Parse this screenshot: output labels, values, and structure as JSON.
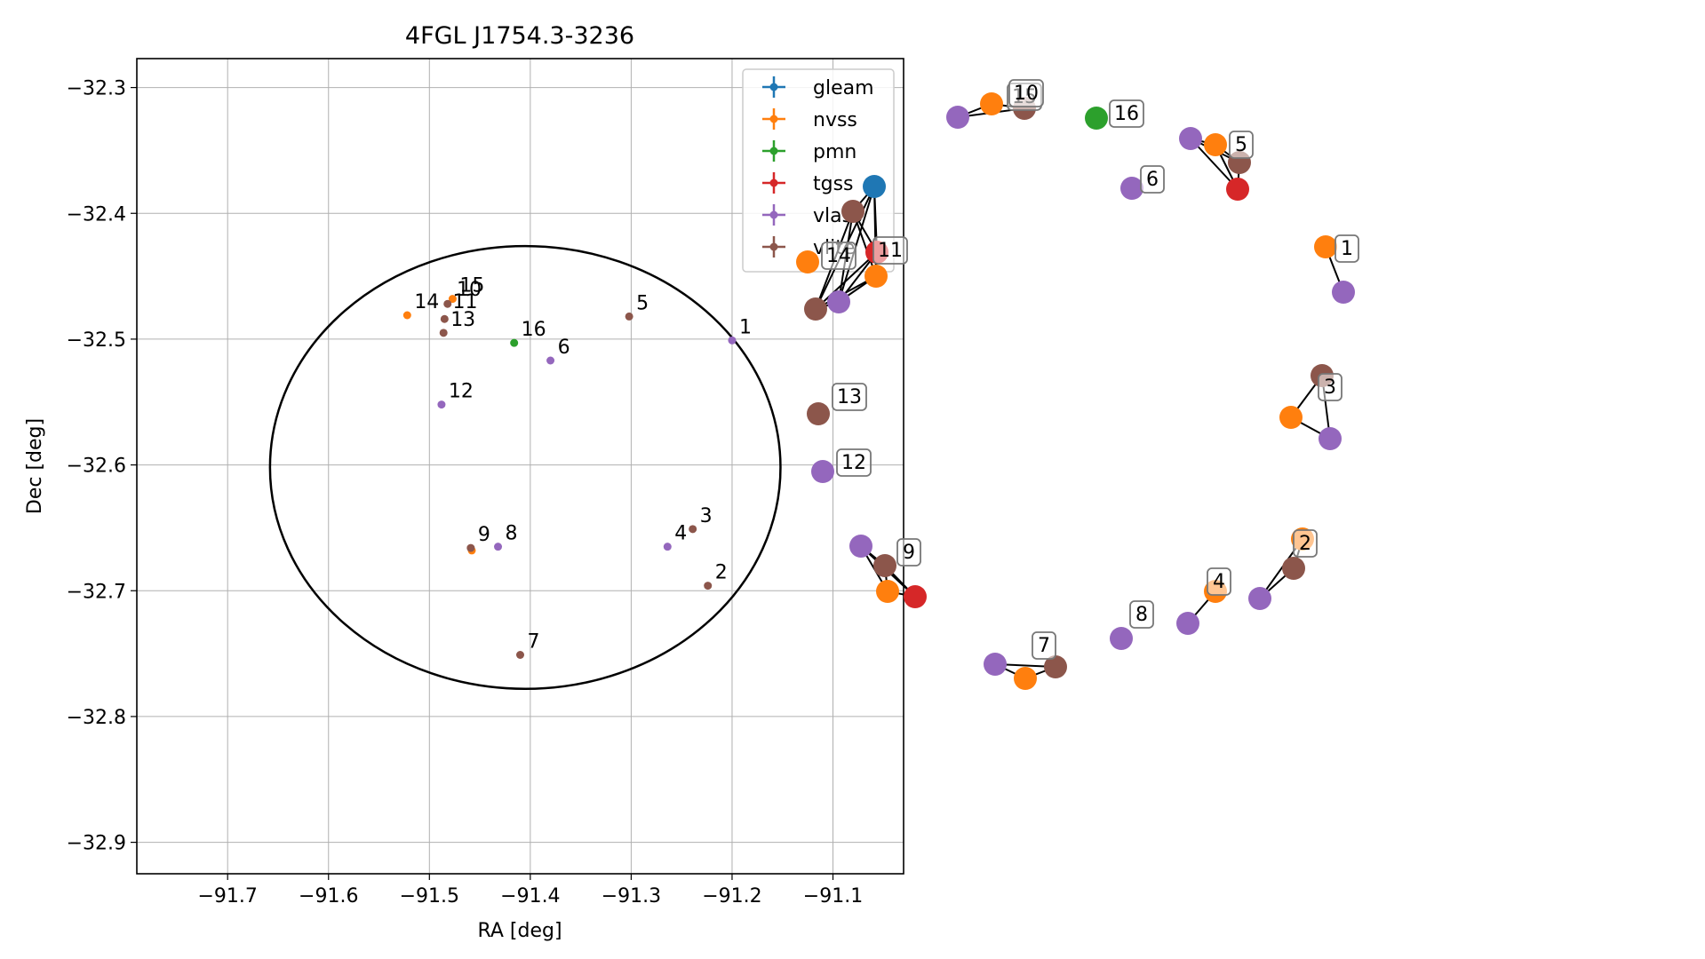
{
  "chart_data": [
    {
      "type": "scatter",
      "title": "4FGL J1754.3-3236",
      "xlabel": "RA [deg]",
      "ylabel": "Dec [deg]",
      "xlim": [
        -91.79,
        -91.03
      ],
      "ylim": [
        -32.925,
        -32.277
      ],
      "xticks": [
        -91.7,
        -91.6,
        -91.5,
        -91.4,
        -91.3,
        -91.2,
        -91.1
      ],
      "xtick_labels": [
        "−91.7",
        "−91.6",
        "−91.5",
        "−91.4",
        "−91.3",
        "−91.2",
        "−91.1"
      ],
      "yticks": [
        -32.3,
        -32.4,
        -32.5,
        -32.6,
        -32.7,
        -32.8,
        -32.9
      ],
      "ytick_labels": [
        "−32.3",
        "−32.4",
        "−32.5",
        "−32.6",
        "−32.7",
        "−32.8",
        "−32.9"
      ],
      "grid": true,
      "legend_position": "top-right",
      "error_ellipse": {
        "center": [
          -91.405,
          -32.602
        ],
        "semi_axis_ra": 0.253,
        "semi_axis_dec": 0.176,
        "color": "#000000"
      },
      "series": [
        {
          "name": "gleam",
          "color": "#1f77b4",
          "points": []
        },
        {
          "name": "nvss",
          "color": "#ff7f0e",
          "points": [
            {
              "x": -91.522,
              "y": -32.481
            },
            {
              "x": -91.477,
              "y": -32.468
            },
            {
              "x": -91.458,
              "y": -32.668
            }
          ]
        },
        {
          "name": "pmn",
          "color": "#2ca02c",
          "points": [
            {
              "x": -91.416,
              "y": -32.503
            }
          ]
        },
        {
          "name": "tgss",
          "color": "#d62728",
          "points": []
        },
        {
          "name": "vlass",
          "color": "#9467bd",
          "points": [
            {
              "x": -91.2,
              "y": -32.501
            },
            {
              "x": -91.38,
              "y": -32.517
            },
            {
              "x": -91.488,
              "y": -32.552
            },
            {
              "x": -91.264,
              "y": -32.665
            },
            {
              "x": -91.432,
              "y": -32.665
            }
          ]
        },
        {
          "name": "vlite",
          "color": "#8c564b",
          "points": [
            {
              "x": -91.302,
              "y": -32.482
            },
            {
              "x": -91.482,
              "y": -32.472
            },
            {
              "x": -91.485,
              "y": -32.484
            },
            {
              "x": -91.486,
              "y": -32.495
            },
            {
              "x": -91.239,
              "y": -32.651
            },
            {
              "x": -91.224,
              "y": -32.696
            },
            {
              "x": -91.459,
              "y": -32.666
            },
            {
              "x": -91.41,
              "y": -32.751
            }
          ]
        }
      ],
      "source_labels": [
        {
          "text": "1",
          "x": -91.2,
          "y": -32.501
        },
        {
          "text": "2",
          "x": -91.224,
          "y": -32.696
        },
        {
          "text": "3",
          "x": -91.239,
          "y": -32.651
        },
        {
          "text": "4",
          "x": -91.264,
          "y": -32.665
        },
        {
          "text": "5",
          "x": -91.302,
          "y": -32.482
        },
        {
          "text": "6",
          "x": -91.38,
          "y": -32.517
        },
        {
          "text": "7",
          "x": -91.41,
          "y": -32.751
        },
        {
          "text": "8",
          "x": -91.432,
          "y": -32.665
        },
        {
          "text": "9",
          "x": -91.459,
          "y": -32.666
        },
        {
          "text": "10",
          "x": -91.48,
          "y": -32.471
        },
        {
          "text": "11",
          "x": -91.484,
          "y": -32.481
        },
        {
          "text": "12",
          "x": -91.488,
          "y": -32.552
        },
        {
          "text": "13",
          "x": -91.486,
          "y": -32.495
        },
        {
          "text": "14",
          "x": -91.522,
          "y": -32.481
        },
        {
          "text": "15",
          "x": -91.477,
          "y": -32.468
        },
        {
          "text": "16",
          "x": -91.416,
          "y": -32.503
        }
      ]
    },
    {
      "type": "scatter",
      "title": "",
      "grid": false,
      "axes": "off",
      "colors": {
        "gleam": "#1f77b4",
        "nvss": "#ff7f0e",
        "pmn": "#2ca02c",
        "tgss": "#d62728",
        "vlass": "#9467bd",
        "vlite": "#8c564b"
      },
      "groups": [
        {
          "label": "15",
          "members": [
            {
              "survey": "vlass",
              "x": 1078,
              "y": 132
            },
            {
              "survey": "nvss",
              "x": 1116,
              "y": 117
            },
            {
              "survey": "vlite",
              "x": 1153,
              "y": 122
            }
          ]
        },
        {
          "label": "10",
          "members": []
        },
        {
          "label": "16",
          "members": [
            {
              "survey": "pmn",
              "x": 1234,
              "y": 133
            }
          ]
        },
        {
          "label": "5",
          "members": [
            {
              "survey": "vlass",
              "x": 1340,
              "y": 156
            },
            {
              "survey": "nvss",
              "x": 1368,
              "y": 163
            },
            {
              "survey": "vlite",
              "x": 1395,
              "y": 183
            },
            {
              "survey": "tgss",
              "x": 1393,
              "y": 213
            }
          ]
        },
        {
          "label": "6",
          "members": [
            {
              "survey": "vlass",
              "x": 1274,
              "y": 212
            }
          ]
        },
        {
          "label": "11",
          "members": [
            {
              "survey": "gleam",
              "x": 984,
              "y": 210
            },
            {
              "survey": "vlite",
              "x": 960,
              "y": 238
            },
            {
              "survey": "tgss",
              "x": 987,
              "y": 284
            },
            {
              "survey": "nvss",
              "x": 986,
              "y": 311
            },
            {
              "survey": "vlass",
              "x": 944,
              "y": 340
            },
            {
              "survey": "vlite",
              "x": 918,
              "y": 348
            }
          ]
        },
        {
          "label": "14",
          "members": [
            {
              "survey": "nvss",
              "x": 909,
              "y": 295
            }
          ]
        },
        {
          "label": "1",
          "members": [
            {
              "survey": "nvss",
              "x": 1492,
              "y": 278
            },
            {
              "survey": "vlass",
              "x": 1512,
              "y": 329
            }
          ]
        },
        {
          "label": "13",
          "members": [
            {
              "survey": "vlite",
              "x": 921,
              "y": 466
            }
          ]
        },
        {
          "label": "3",
          "members": [
            {
              "survey": "vlite",
              "x": 1488,
              "y": 423
            },
            {
              "survey": "nvss",
              "x": 1453,
              "y": 470
            },
            {
              "survey": "vlass",
              "x": 1497,
              "y": 494
            }
          ]
        },
        {
          "label": "12",
          "members": [
            {
              "survey": "vlass",
              "x": 926,
              "y": 531
            }
          ]
        },
        {
          "label": "9",
          "members": [
            {
              "survey": "vlass",
              "x": 969,
              "y": 615
            },
            {
              "survey": "vlite",
              "x": 996,
              "y": 637
            },
            {
              "survey": "nvss",
              "x": 999,
              "y": 666
            },
            {
              "survey": "tgss",
              "x": 1030,
              "y": 672
            }
          ]
        },
        {
          "label": "2",
          "members": [
            {
              "survey": "nvss",
              "x": 1466,
              "y": 607
            },
            {
              "survey": "vlite",
              "x": 1456,
              "y": 640
            },
            {
              "survey": "vlass",
              "x": 1418,
              "y": 674
            }
          ]
        },
        {
          "label": "4",
          "members": [
            {
              "survey": "nvss",
              "x": 1368,
              "y": 666
            },
            {
              "survey": "vlass",
              "x": 1337,
              "y": 702
            }
          ]
        },
        {
          "label": "8",
          "members": [
            {
              "survey": "vlass",
              "x": 1262,
              "y": 719
            }
          ]
        },
        {
          "label": "7",
          "members": [
            {
              "survey": "vlass",
              "x": 1120,
              "y": 748
            },
            {
              "survey": "nvss",
              "x": 1154,
              "y": 764
            },
            {
              "survey": "vlite",
              "x": 1188,
              "y": 751
            }
          ]
        }
      ]
    }
  ]
}
